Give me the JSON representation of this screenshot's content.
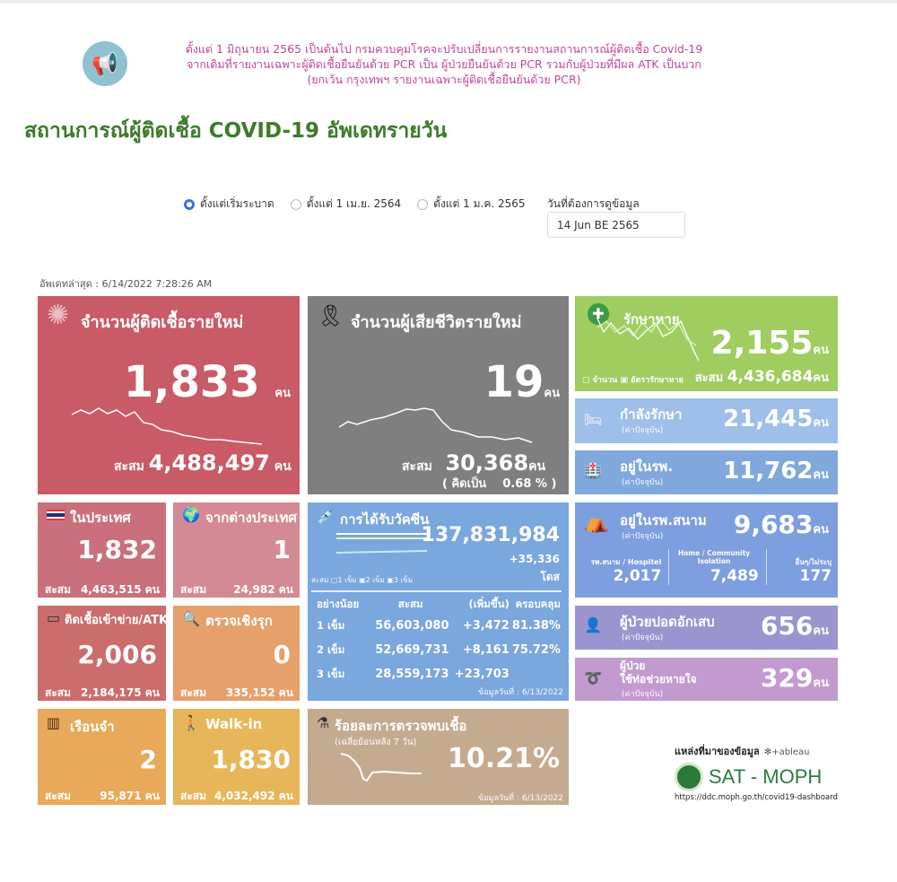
{
  "notice": {
    "lines": [
      "ตั้งแต่ 1 มิถุนายน 2565 เป็นต้นไป กรมควบคุมโรคจะปรับเปลี่ยนการรายงานสถานการณ์ผู้ติดเชื้อ Covid-19",
      "จากเดิมที่รายงานเฉพาะผู้ติดเชื้อยืนยันด้วย PCR เป็น ผู้ป่วยยืนยันด้วย PCR รวมกับผู้ป่วยที่มีผล ATK เป็นบวก",
      "(ยกเว้น กรุงเทพฯ รายงานเฉพาะผู้ติดเชื้อยืนยันด้วย PCR)"
    ],
    "icon": "megaphone-icon"
  },
  "title": "สถานการณ์ผู้ติดเชื้อ COVID-19 อัพเดทรายวัน",
  "filters": {
    "options": [
      "ตั้งแต่เริ่มระบาด",
      "ตั้งแต่ 1 เม.ย. 2564",
      "ตั้งแต่ 1 ม.ค. 2565"
    ],
    "selected": 0,
    "date_label": "วันที่ต้องการดูข้อมูล",
    "date_value": "14 Jun BE 2565"
  },
  "updated": "อัพเดทล่าสุด : 6/14/2022 7:28:26 AM",
  "unit": "คน",
  "cum_label": "สะสม",
  "current_label": "(ค่าปัจจุบัน)",
  "new_cases": {
    "title": "จำนวนผู้ติดเชื้อรายใหม่",
    "value": "1,833",
    "cumulative": "4,488,497",
    "color": "#c95b66"
  },
  "deaths": {
    "title": "จำนวนผู้เสียชีวิตรายใหม่",
    "value": "19",
    "cumulative": "30,368",
    "pct_label": "( คิดเป็น",
    "pct": "0.68 % )",
    "color": "#7f7f7f"
  },
  "recovered": {
    "title": "รักษาหาย",
    "value": "2,155",
    "cumulative": "4,436,684",
    "legend": [
      "จำนวน",
      "อัตรารักษาหาย"
    ],
    "color": "#9fcd60"
  },
  "treating": {
    "title": "กำลังรักษา",
    "value": "21,445",
    "color": "#9dbfe9"
  },
  "hospital": {
    "title": "อยู่ในรพ.",
    "value": "11,762",
    "color": "#80a8dd"
  },
  "domestic": {
    "title": "ในประเทศ",
    "value": "1,832",
    "cumulative": "4,463,515"
  },
  "abroad": {
    "title": "จากต่างประเทศ",
    "value": "1",
    "cumulative": "24,982"
  },
  "atk": {
    "title": "ติดเชื้อเข้าข่าย/ATK",
    "value": "2,006",
    "cumulative": "2,184,175"
  },
  "proactive": {
    "title": "ตรวจเชิงรุก",
    "value": "0",
    "cumulative": "335,152"
  },
  "prison": {
    "title": "เรือนจำ",
    "value": "2",
    "cumulative": "95,871"
  },
  "walkin": {
    "title": "Walk-in",
    "value": "1,830",
    "cumulative": "4,032,492"
  },
  "vaccine": {
    "title": "การได้รับวัคซีน",
    "total": "137,831,984",
    "increase": "+35,336",
    "dose_unit": "โดส",
    "legend": [
      "สะสม",
      "1 เข็ม",
      "2 เข็ม",
      "3 เข็ม"
    ],
    "headers": [
      "อย่างน้อย",
      "สะสม",
      "(เพิ่มขึ้น)",
      "ครอบคลุม"
    ],
    "rows": [
      [
        "1 เข็ม",
        "56,603,080",
        "+3,472",
        "81.38%"
      ],
      [
        "2 เข็ม",
        "52,669,731",
        "+8,161",
        "75.72%"
      ],
      [
        "3 เข็ม",
        "28,559,173",
        "+23,703",
        ""
      ]
    ],
    "date": "ข้อมูลวันที่ : 6/13/2022"
  },
  "positivity": {
    "title": "ร้อยละการตรวจพบเชื้อ",
    "subtitle": "(เฉลี่ยย้อนหลัง 7 วัน)",
    "value": "10.21%",
    "date": "ข้อมูลวันที่ : 6/13/2022"
  },
  "field": {
    "title": "อยู่ในรพ.สนาม",
    "value": "9,683",
    "cols": [
      {
        "label": "รพ.สนาม / Hospitel",
        "value": "2,017"
      },
      {
        "label": "Home / Community Isolation",
        "value": "7,489"
      },
      {
        "label": "อื่นๆ/ไม่ระบุ",
        "value": "177"
      }
    ]
  },
  "pneumonia": {
    "title": "ผู้ป่วยปอดอักเสบ",
    "value": "656"
  },
  "ventilator": {
    "title1": "ผู้ป่วย",
    "title2": "ใช้ท่อช่วยหายใจ",
    "value": "329"
  },
  "source": {
    "label": "แหล่งที่มาของข้อมูล",
    "tableau": "+ableau",
    "brand": "SAT - MOPH",
    "url": "https://ddc.moph.go.th/covid19-dashboard"
  }
}
